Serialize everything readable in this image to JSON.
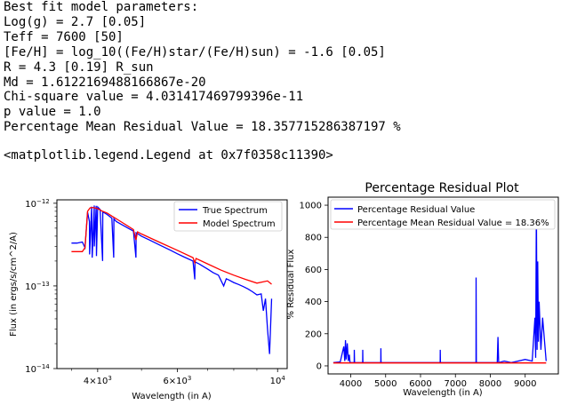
{
  "output_lines": [
    "Best fit model parameters:",
    "Log(g) = 2.7 [0.05]",
    "Teff = 7600 [50]",
    "[Fe/H] = log_10((Fe/H)star/(Fe/H)sun) = -1.6 [0.05]",
    "R = 4.3 [0.19] R_sun",
    "Md = 1.6122169488166867e-20",
    "Chi-square value = 4.031417469799396e-11",
    "p value = 1.0",
    "Percentage Mean Residual Value = 18.357715286387197 %"
  ],
  "legend_repr": "<matplotlib.legend.Legend at 0x7f0358c11390>",
  "colors": {
    "true": "#0000ff",
    "model": "#ff0000"
  },
  "chart_data": [
    {
      "type": "line",
      "title": "",
      "xlabel": "Wavelength (in A)",
      "ylabel": "Flux (in ergs/s/cm^2/A)",
      "xscale": "log",
      "yscale": "log",
      "xlim": [
        3250,
        10500
      ],
      "ylim": [
        1e-14,
        1.1e-12
      ],
      "x_ticks": [
        {
          "value": 4000,
          "base": "4",
          "exp": "3",
          "prefix": "4×10"
        },
        {
          "value": 6000,
          "base": "6",
          "exp": "3",
          "prefix": "6×10"
        },
        {
          "value": 10000,
          "base": "10",
          "exp": "4",
          "prefix": "10"
        }
      ],
      "y_ticks": [
        {
          "value": 1e-12,
          "base": "10",
          "exp": "−12"
        },
        {
          "value": 1e-13,
          "base": "10",
          "exp": "−13"
        },
        {
          "value": 1e-14,
          "base": "10",
          "exp": "−14"
        }
      ],
      "legend": {
        "position": "upper right",
        "entries": [
          "True Spectrum",
          "Model Spectrum"
        ]
      },
      "series": [
        {
          "name": "True Spectrum",
          "x": [
            3500,
            3600,
            3700,
            3750,
            3800,
            3835,
            3840,
            3880,
            3890,
            3930,
            3933,
            3970,
            3975,
            4000,
            4050,
            4101,
            4105,
            4150,
            4200,
            4300,
            4340,
            4345,
            4400,
            4500,
            4700,
            4800,
            4861,
            4865,
            4900,
            5000,
            5200,
            5500,
            5800,
            6000,
            6200,
            6500,
            6560,
            6565,
            6700,
            7000,
            7200,
            7400,
            7600,
            7700,
            7800,
            8000,
            8200,
            8400,
            8600,
            8800,
            9000,
            9200,
            9300,
            9400,
            9500,
            9600,
            9700
          ],
          "y": [
            3.3e-13,
            3.3e-13,
            3.4e-13,
            2.9e-13,
            7.8e-13,
            6e-13,
            2.4e-13,
            9.1e-13,
            2.2e-13,
            9.4e-13,
            3e-13,
            9.3e-13,
            2.3e-13,
            9e-13,
            8.4e-13,
            2e-13,
            7.9e-13,
            7.6e-13,
            7.3e-13,
            6.6e-13,
            2.2e-13,
            6.5e-13,
            6e-13,
            5.6e-13,
            4.9e-13,
            4.6e-13,
            2.2e-13,
            4.4e-13,
            4.3e-13,
            4e-13,
            3.6e-13,
            3.1e-13,
            2.7e-13,
            2.45e-13,
            2.25e-13,
            2e-13,
            1.2e-13,
            1.95e-13,
            1.85e-13,
            1.6e-13,
            1.45e-13,
            1.35e-13,
            1e-13,
            1.22e-13,
            1.18e-13,
            1.1e-13,
            1.04e-13,
            9.8e-14,
            9.2e-14,
            8.5e-14,
            7.8e-14,
            8e-14,
            5e-14,
            7e-14,
            3e-14,
            1.5e-14,
            7e-14
          ]
        },
        {
          "name": "Model Spectrum",
          "x": [
            3500,
            3600,
            3700,
            3750,
            3800,
            3850,
            3900,
            4000,
            4100,
            4200,
            4300,
            4500,
            4800,
            4861,
            4900,
            5000,
            5500,
            6000,
            6500,
            6560,
            6600,
            7000,
            7500,
            8000,
            8500,
            9000,
            9500,
            9700
          ],
          "y": [
            2.6e-13,
            2.6e-13,
            2.6e-13,
            2.9e-13,
            8e-13,
            8.8e-13,
            8.9e-13,
            8.6e-13,
            8e-13,
            7.6e-13,
            7e-13,
            6e-13,
            4.8e-13,
            3.6e-13,
            4.5e-13,
            4.25e-13,
            3.35e-13,
            2.7e-13,
            2.2e-13,
            1.9e-13,
            2.15e-13,
            1.85e-13,
            1.55e-13,
            1.35e-13,
            1.2e-13,
            1.08e-13,
            1.15e-13,
            1.05e-13
          ]
        }
      ]
    },
    {
      "type": "line",
      "title": "Percentage Residual Plot",
      "xlabel": "Wavelength (in A)",
      "ylabel": "% Residual Flux",
      "xlim": [
        3350,
        9950
      ],
      "ylim": [
        -50,
        1050
      ],
      "x_ticks": [
        4000,
        5000,
        6000,
        7000,
        8000,
        9000
      ],
      "y_ticks": [
        0,
        200,
        400,
        600,
        800,
        1000
      ],
      "legend": {
        "position": "upper left",
        "entries": [
          "Percentage Residual Value",
          "Percentage Mean Residual Value = 18.36%"
        ]
      },
      "series": [
        {
          "name": "Percentage Residual Value",
          "x": [
            3500,
            3700,
            3800,
            3830,
            3850,
            3870,
            3900,
            3930,
            3960,
            3980,
            4000,
            4100,
            4103,
            4110,
            4200,
            4340,
            4343,
            4350,
            4500,
            4861,
            4864,
            4870,
            5000,
            5500,
            6000,
            6563,
            6566,
            6570,
            7000,
            7590,
            7594,
            7600,
            7700,
            8000,
            8200,
            8220,
            8240,
            8400,
            8600,
            8800,
            9000,
            9200,
            9280,
            9300,
            9320,
            9340,
            9360,
            9380,
            9400,
            9450,
            9500,
            9600
          ],
          "y": [
            20,
            25,
            120,
            30,
            160,
            40,
            140,
            30,
            70,
            20,
            20,
            20,
            100,
            20,
            20,
            20,
            100,
            20,
            20,
            20,
            110,
            20,
            20,
            20,
            20,
            20,
            100,
            20,
            20,
            20,
            550,
            20,
            20,
            20,
            20,
            180,
            20,
            30,
            20,
            30,
            40,
            30,
            300,
            50,
            1000,
            100,
            650,
            150,
            400,
            100,
            300,
            30
          ]
        },
        {
          "name": "Percentage Mean Residual Value = 18.36%",
          "x": [
            3500,
            9600
          ],
          "y": [
            18.36,
            18.36
          ]
        }
      ]
    }
  ]
}
